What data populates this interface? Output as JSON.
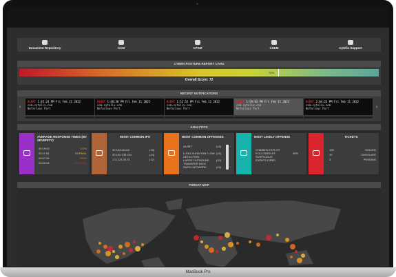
{
  "nav": [
    {
      "label": "Document Repository"
    },
    {
      "label": "CCM"
    },
    {
      "label": "CPSM"
    },
    {
      "label": "CSEM"
    },
    {
      "label": "Cytelix Support"
    }
  ],
  "report_card": {
    "title": "CYBER POSTURE REPORT CARD",
    "marker_label": "72%",
    "score_caption": "Overall Score:",
    "score": 72
  },
  "notifications": {
    "title": "RECENT NOTIFICATIONS",
    "items": [
      {
        "tag": "ALERT",
        "time": "1:45:24 PM Fri Feb 11 2022",
        "host": "com.cytelix.com",
        "event": "Nefarious Port"
      },
      {
        "tag": "ALERT",
        "time": "1:48:30 PM Fri Feb 11 2022",
        "host": "com.cytelix.com",
        "event": "Nefarious Port"
      },
      {
        "tag": "ALERT",
        "time": "1:52:52 PM Fri Feb 11 2022",
        "host": "com.cytelix.com",
        "event": "Nefarious Port"
      },
      {
        "tag": "ALERT",
        "time": "1:59:03 PM Fri Feb 11 2022",
        "host": "com.cytelix.com",
        "event": "Nefarious Port"
      },
      {
        "tag": "ALERT",
        "time": "2:04:23 PM Fri Feb 11 2022",
        "host": "com.cytelix.com",
        "event": "Nefarious Port"
      }
    ]
  },
  "analytics": {
    "title": "ANALYTICS",
    "response_times": {
      "title": "AVERAGE RESPONSE TIMES (BY SEVERITY)",
      "rows": [
        {
          "time": "00:19:03",
          "level": "LOW"
        },
        {
          "time": "00:11:54",
          "level": "NORMAL"
        },
        {
          "time": "00:07:34",
          "level": "HIGH"
        },
        {
          "time": "00:03:14",
          "level": "CRITICAL"
        }
      ]
    },
    "ips": {
      "title": "MOST COMMON IPS",
      "rows": [
        {
          "ip": "40.103.23.112",
          "count": "(13)"
        },
        {
          "ip": "40.100.135.154",
          "count": "(13)"
        },
        {
          "ip": "172.123.25.75",
          "count": "(17)"
        }
      ]
    },
    "offenses": {
      "title": "MOST COMMON OFFENSES",
      "rows": [
        {
          "name": "ALERT",
          "count": "(10)"
        },
        {
          "name": "LONG DURATION FLOW DETECTION",
          "count": "(10)"
        },
        {
          "name": "LARGE OUTBOUND TRANSFER HIGH",
          "count": "(10)"
        },
        {
          "name": "RAPID NETWORK",
          "count": "(10)"
        }
      ]
    },
    "likely": {
      "title": "MOST LIKELY OFFENSE",
      "text": "CHAINED EXPLOIT FOLLOWED BY SUSPICIOUS EVENTS FIRED",
      "percent": "45%"
    },
    "tickets": {
      "title": "TICKETS",
      "rows": [
        {
          "count": "156",
          "status": "SOLVED"
        },
        {
          "count": "10",
          "status": "UNSOLVED"
        },
        {
          "count": "3",
          "status": "PENDING"
        }
      ]
    }
  },
  "threat_map": {
    "title": "THREAT MAP"
  },
  "device": "MacBook Pro"
}
